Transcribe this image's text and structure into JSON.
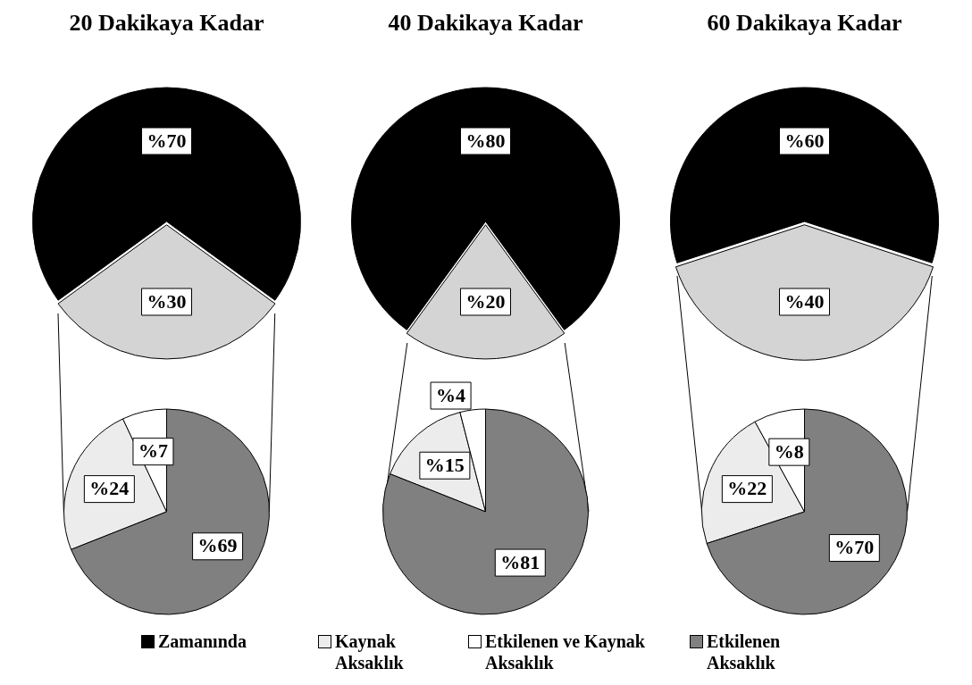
{
  "chart_data": [
    {
      "type": "pie",
      "title": "20 Dakikaya Kadar",
      "categories": [
        "Zamanında",
        null
      ],
      "values": [
        70,
        30
      ],
      "colors": [
        "#000000",
        "#d4d4d4"
      ],
      "value_labels": [
        "%70",
        "%30"
      ],
      "legend": "bottom"
    },
    {
      "type": "pie",
      "title": "40 Dakikaya Kadar",
      "categories": [
        null,
        null
      ],
      "values": [
        80,
        20
      ],
      "colors": [
        "#000000",
        "#d4d4d4"
      ],
      "value_labels": [
        "%80",
        "%20"
      ]
    },
    {
      "type": "pie",
      "title": "60 Dakikaya Kadar",
      "categories": [
        null,
        null
      ],
      "values": [
        60,
        40
      ],
      "colors": [
        "#000000",
        "#d4d4d4"
      ],
      "value_labels": [
        "%60",
        "%40"
      ]
    },
    {
      "type": "pie",
      "categories": [
        "Kaynak Aksaklık",
        "Etkilenen ve Kaynak Aksaklık",
        "Etkilenen Aksaklık"
      ],
      "values": [
        24,
        7,
        69
      ],
      "colors": [
        "#ececec",
        "#ffffff",
        "#808080"
      ],
      "value_labels": [
        "%24",
        "%7",
        "%69"
      ],
      "legend": "bottom"
    },
    {
      "type": "pie",
      "categories": [
        null,
        null,
        null
      ],
      "values": [
        15,
        4,
        81
      ],
      "colors": [
        "#ececec",
        "#ffffff",
        "#808080"
      ],
      "value_labels": [
        "%15",
        "%4",
        "%81"
      ]
    },
    {
      "type": "pie",
      "categories": [
        null,
        null,
        null
      ],
      "values": [
        22,
        8,
        70
      ],
      "colors": [
        "#ececec",
        "#ffffff",
        "#808080"
      ],
      "value_labels": [
        "%22",
        "%8",
        "%70"
      ]
    }
  ]
}
